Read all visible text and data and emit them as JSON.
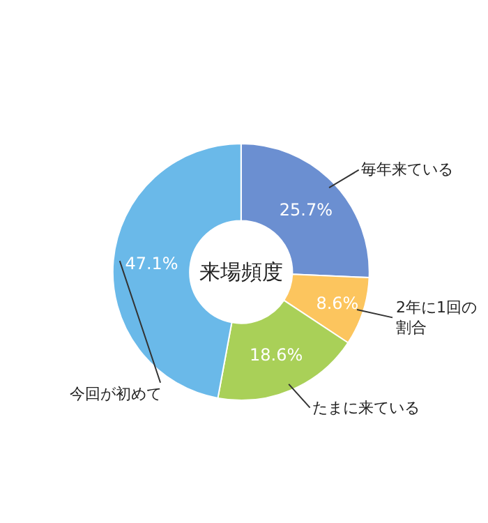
{
  "chart_data": {
    "type": "donut",
    "title": "来場頻度",
    "categories": [
      "毎年来ている",
      "2年に1回の割合",
      "たまに来ている",
      "今回が初めて"
    ],
    "values": [
      25.7,
      8.6,
      18.6,
      47.1
    ],
    "value_labels": [
      "25.7%",
      "8.6%",
      "18.6%",
      "47.1%"
    ],
    "colors": [
      "#6b8fd1",
      "#fcc55e",
      "#a9d058",
      "#6ab9e9"
    ],
    "legend": false
  }
}
